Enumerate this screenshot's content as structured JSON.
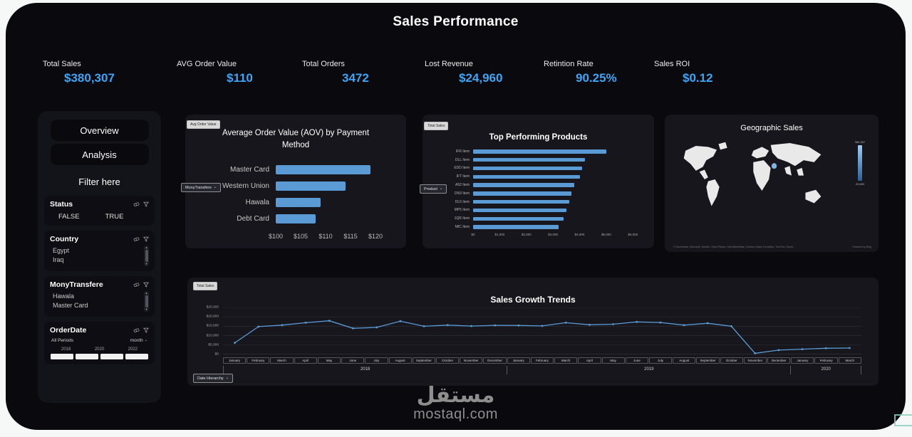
{
  "title": "Sales Performance",
  "colors": {
    "accent_blue": "#3da5f5",
    "bar_blue": "#5b9bd5",
    "panel_bg": "#16161c",
    "dashboard_bg": "#0a0a0e"
  },
  "kpis": [
    {
      "label": "Total Sales",
      "value": "$380,307"
    },
    {
      "label": "AVG Order Value",
      "value": "$110"
    },
    {
      "label": "Total Orders",
      "value": "3472"
    },
    {
      "label": "Lost Revenue",
      "value": "$24,960"
    },
    {
      "label": "Retintion Rate",
      "value": "90.25%"
    },
    {
      "label": "Sales ROI",
      "value": "$0.12"
    }
  ],
  "sidebar": {
    "nav_overview": "Overview",
    "nav_analysis": "Analysis",
    "filter_here": "Filter here",
    "status": {
      "name": "Status",
      "options": [
        "FALSE",
        "TRUE"
      ]
    },
    "country": {
      "name": "Country",
      "options": [
        "Egypt",
        "Iraq"
      ]
    },
    "payment": {
      "name": "MonyTransfere",
      "options": [
        "Hawala",
        "Master Card"
      ]
    },
    "orderdate": {
      "name": "OrderDate",
      "period": "All Periods",
      "granularity": "month",
      "years": [
        "2018",
        "2020",
        "2022"
      ]
    }
  },
  "chart_data": [
    {
      "id": "aov",
      "type": "bar",
      "orientation": "horizontal",
      "measure_chip": "Avg Order Value",
      "field_chip": "MonyTransfere",
      "title": "Average Order Value (AOV) by Payment Method",
      "categories": [
        "Master Card",
        "Western Union",
        "Hawala",
        "Debt Card"
      ],
      "values": [
        119,
        114,
        109,
        108
      ],
      "xlim": [
        100,
        121
      ],
      "xticks": [
        "$100",
        "$105",
        "$110",
        "$115",
        "$120"
      ],
      "xtick_values": [
        100,
        105,
        110,
        115,
        120
      ]
    },
    {
      "id": "products",
      "type": "bar",
      "orientation": "horizontal",
      "measure_chip": "Total Sales",
      "field_chip": "Product",
      "title": "Top Performing Products",
      "categories": [
        "IFR Item",
        "DLL Item",
        "EDD Item",
        "IFT Item",
        "A52 Item",
        "DN3 Item",
        "DL5 Item",
        "MP5 Item",
        "1QR Item",
        "MIC Item"
      ],
      "values": [
        5000,
        4200,
        4100,
        4000,
        3800,
        3700,
        3600,
        3500,
        3400,
        3200
      ],
      "xlim": [
        0,
        6100
      ],
      "xticks": [
        "$0",
        "$1,000",
        "$2,000",
        "$3,000",
        "$4,000",
        "$5,000",
        "$6,000"
      ],
      "xtick_values": [
        0,
        1000,
        2000,
        3000,
        4000,
        5000,
        6000
      ]
    },
    {
      "id": "trend",
      "type": "line",
      "measure_chip": "Total Sales",
      "hierarchy_chip": "Date Hierarchy",
      "title": "Sales Growth Trends",
      "months": [
        "January",
        "February",
        "March",
        "April",
        "May",
        "June",
        "July",
        "August",
        "September",
        "October",
        "November",
        "December",
        "January",
        "February",
        "March",
        "April",
        "May",
        "June",
        "July",
        "August",
        "September",
        "October",
        "November",
        "December",
        "January",
        "February",
        "March"
      ],
      "year_groups": [
        {
          "label": "2018",
          "count": 12
        },
        {
          "label": "2019",
          "count": 12
        },
        {
          "label": "2020",
          "count": 3
        }
      ],
      "values": [
        6200,
        14800,
        15600,
        16900,
        17900,
        13900,
        14400,
        17700,
        15000,
        15600,
        15100,
        15500,
        15400,
        15200,
        16900,
        15800,
        16100,
        17300,
        17000,
        15600,
        16600,
        15000,
        600,
        2300,
        2800,
        3300,
        3400
      ],
      "ylim": [
        0,
        25000
      ],
      "yticks": [
        "$25,000",
        "$20,000",
        "$15,000",
        "$10,000",
        "$5,000",
        "$0"
      ]
    },
    {
      "id": "map",
      "type": "map",
      "title": "Geographic Sales",
      "legend_max": "380,307",
      "legend_min": "23,583",
      "attribution": "© GeoNames, Microsoft, Navinfo, Open Places, OpenStreetMap, Overture Maps Fundation, TomTom, Zenrin",
      "powered_by": "Powered by Bing"
    }
  ],
  "watermark": {
    "arabic": "مستقل",
    "latin": "mostaql.com"
  }
}
